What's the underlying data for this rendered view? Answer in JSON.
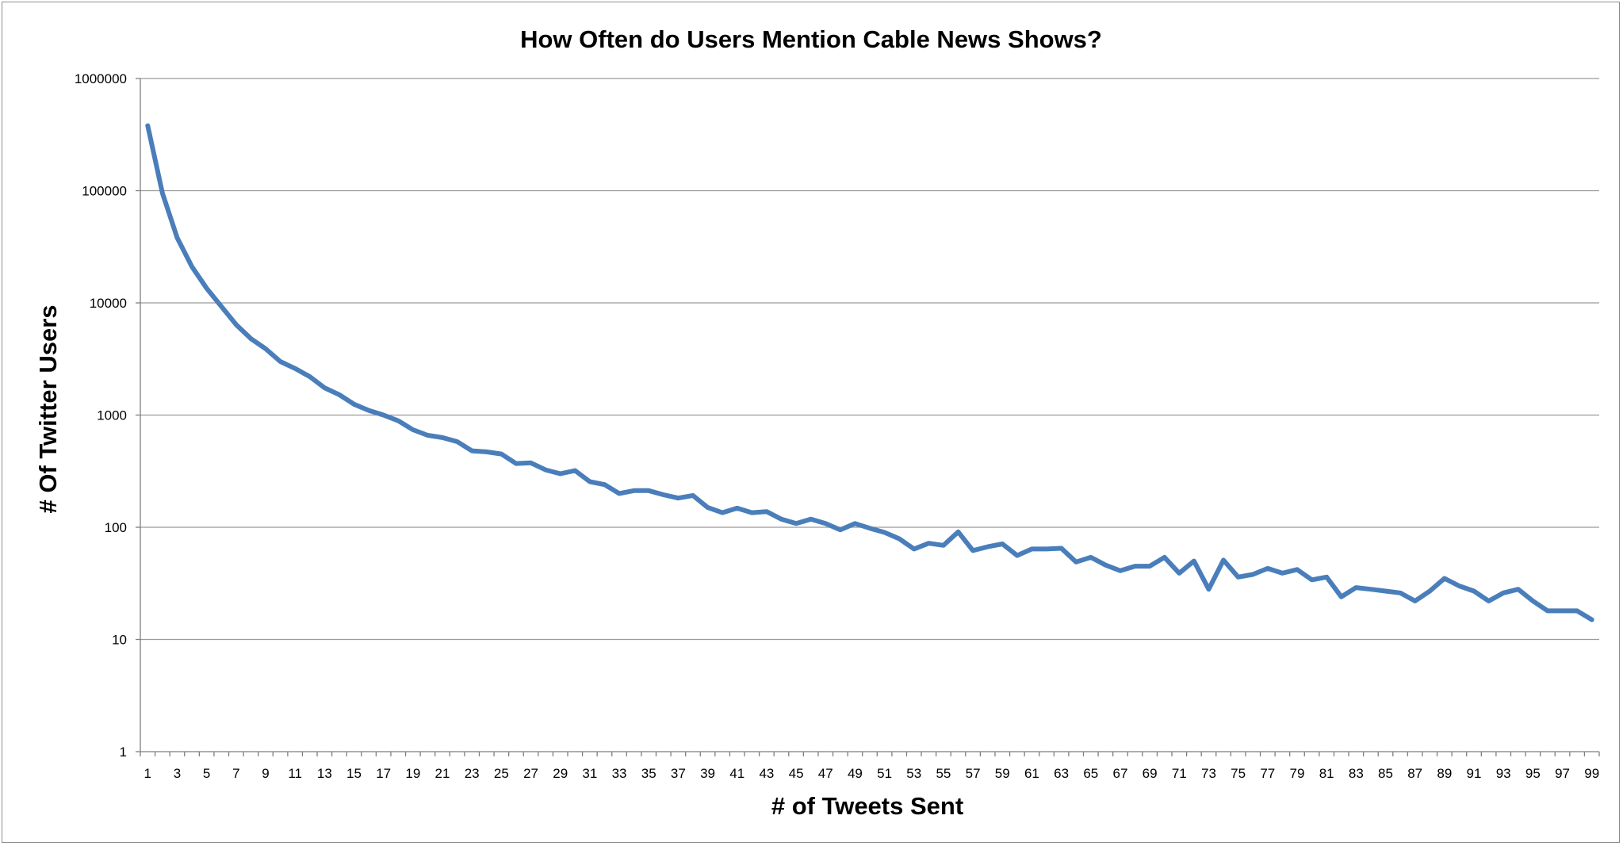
{
  "chart_data": {
    "type": "line",
    "title": "How Often do Users Mention Cable News Shows?",
    "xlabel": "# of Tweets Sent",
    "ylabel": "# Of Twitter Users",
    "yscale": "log",
    "ylim": [
      1,
      1000000
    ],
    "y_ticks": [
      "1",
      "10",
      "100",
      "1000",
      "10000",
      "100000",
      "1000000"
    ],
    "x_tick_labels": [
      "1",
      "3",
      "5",
      "7",
      "9",
      "11",
      "13",
      "15",
      "17",
      "19",
      "21",
      "23",
      "25",
      "27",
      "29",
      "31",
      "33",
      "35",
      "37",
      "39",
      "41",
      "43",
      "45",
      "47",
      "49",
      "51",
      "53",
      "55",
      "57",
      "59",
      "61",
      "63",
      "65",
      "67",
      "69",
      "71",
      "73",
      "75",
      "77",
      "79",
      "81",
      "83",
      "85",
      "87",
      "89",
      "91",
      "93",
      "95",
      "97",
      "99"
    ],
    "grid": true,
    "legend": "none",
    "series": [
      {
        "color": "#4a7ebb",
        "x": [
          1,
          2,
          3,
          4,
          5,
          6,
          7,
          8,
          9,
          10,
          11,
          12,
          13,
          14,
          15,
          16,
          17,
          18,
          19,
          20,
          21,
          22,
          23,
          24,
          25,
          26,
          27,
          28,
          29,
          30,
          31,
          32,
          33,
          34,
          35,
          36,
          37,
          38,
          39,
          40,
          41,
          42,
          43,
          44,
          45,
          46,
          47,
          48,
          49,
          50,
          51,
          52,
          53,
          54,
          55,
          56,
          57,
          58,
          59,
          60,
          61,
          62,
          63,
          64,
          65,
          66,
          67,
          68,
          69,
          70,
          71,
          72,
          73,
          74,
          75,
          76,
          77,
          78,
          79,
          80,
          81,
          82,
          83,
          84,
          85,
          86,
          87,
          88,
          89,
          90,
          91,
          92,
          93,
          94,
          95,
          96,
          97,
          98,
          99
        ],
        "values": [
          380000,
          95000,
          38000,
          21000,
          13500,
          9300,
          6400,
          4800,
          3900,
          3000,
          2600,
          2200,
          1750,
          1520,
          1250,
          1100,
          1000,
          890,
          740,
          660,
          630,
          580,
          480,
          470,
          450,
          370,
          375,
          325,
          300,
          320,
          255,
          240,
          200,
          212,
          212,
          195,
          182,
          192,
          150,
          135,
          148,
          135,
          138,
          118,
          108,
          118,
          108,
          95,
          108,
          98,
          90,
          79,
          64,
          72,
          69,
          91,
          62,
          67,
          71,
          56,
          64,
          64,
          65,
          49,
          54,
          46,
          41,
          45,
          45,
          54,
          39,
          50,
          28,
          51,
          36,
          38,
          43,
          39,
          42,
          34,
          36,
          24,
          29,
          28,
          27,
          26,
          22,
          27,
          35,
          30,
          27,
          22,
          26,
          28,
          22,
          18,
          18,
          18,
          15
        ]
      }
    ]
  }
}
